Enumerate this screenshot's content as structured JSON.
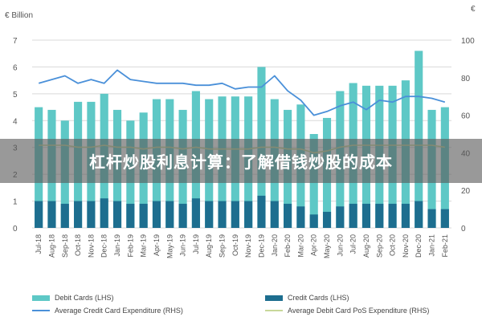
{
  "banner_text": "杠杆炒股利息计算：了解借钱炒股的成本",
  "colors": {
    "debit_bar": "#5ec8c6",
    "credit_bar": "#1d6e8f",
    "credit_line": "#4a90d9",
    "debit_line": "#c8d89a",
    "grid": "#d9d9d9"
  },
  "chart_data": {
    "type": "bar",
    "left_axis_label": "€ Billion",
    "right_axis_label": "€",
    "left_ylim": [
      0,
      7
    ],
    "right_ylim": [
      0,
      100
    ],
    "left_ticks": [
      "0",
      "1",
      "2",
      "3",
      "4",
      "5",
      "6",
      "7"
    ],
    "right_ticks": [
      "0",
      "20",
      "40",
      "60",
      "80",
      "100"
    ],
    "grid": true,
    "legend_position": "bottom",
    "categories": [
      "Jul-18",
      "Aug-18",
      "Sep-18",
      "Oct-18",
      "Nov-18",
      "Dec-18",
      "Jan-19",
      "Feb-19",
      "Mar-19",
      "Apr-19",
      "May-19",
      "Jun-19",
      "Jul-19",
      "Aug-19",
      "Sep-19",
      "Oct-19",
      "Nov-19",
      "Dec-19",
      "Jan-20",
      "Feb-20",
      "Mar-20",
      "Apr-20",
      "May-20",
      "Jun-20",
      "Jul-20",
      "Aug-20",
      "Sep-20",
      "Oct-20",
      "Nov-20",
      "Dec-20",
      "Jan-21",
      "Feb-21"
    ],
    "series": [
      {
        "name": "Debit Cards (LHS)",
        "axis": "left",
        "kind": "bar",
        "values": [
          4.5,
          4.4,
          4.0,
          4.7,
          4.7,
          5.0,
          4.4,
          4.0,
          4.3,
          4.8,
          4.8,
          4.4,
          5.1,
          4.8,
          4.9,
          4.9,
          4.9,
          6.0,
          4.8,
          4.4,
          4.6,
          3.5,
          4.1,
          5.1,
          5.4,
          5.3,
          5.3,
          5.3,
          5.5,
          6.6,
          4.4,
          4.5
        ]
      },
      {
        "name": "Credit Cards (LHS)",
        "axis": "left",
        "kind": "bar",
        "values": [
          1.0,
          1.0,
          0.9,
          1.0,
          1.0,
          1.1,
          1.0,
          0.9,
          0.9,
          1.0,
          1.0,
          0.9,
          1.1,
          1.0,
          1.0,
          1.0,
          1.0,
          1.2,
          1.0,
          0.9,
          0.8,
          0.5,
          0.6,
          0.8,
          0.9,
          0.9,
          0.9,
          0.9,
          0.9,
          1.0,
          0.7,
          0.7
        ]
      },
      {
        "name": "Average Credit Card Expenditure (RHS)",
        "axis": "right",
        "kind": "line",
        "values": [
          77,
          79,
          81,
          77,
          79,
          77,
          84,
          79,
          78,
          77,
          77,
          77,
          76,
          76,
          77,
          74,
          75,
          75,
          81,
          73,
          68,
          60,
          62,
          65,
          67,
          63,
          68,
          67,
          70,
          70,
          69,
          67
        ]
      },
      {
        "name": "Average Debit Card PoS Expenditure (RHS)",
        "axis": "right",
        "kind": "line",
        "values": [
          44,
          44,
          44,
          43,
          43,
          44,
          43,
          43,
          42,
          43,
          43,
          42,
          43,
          42,
          42,
          42,
          42,
          43,
          43,
          42,
          42,
          40,
          41,
          43,
          44,
          44,
          44,
          44,
          44,
          44,
          44,
          43
        ]
      }
    ]
  }
}
